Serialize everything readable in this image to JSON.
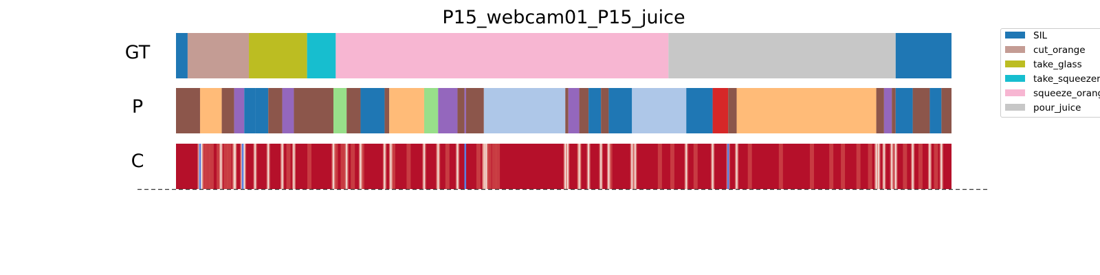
{
  "chart_data": {
    "type": "segmentation-timeline",
    "title": "P15_webcam01_P15_juice",
    "rows": [
      "GT",
      "P",
      "C"
    ],
    "x_range": [
      0,
      1000
    ],
    "legend": [
      "SIL",
      "cut_orange",
      "take_glass",
      "take_squeezer",
      "squeeze_orange",
      "pour_juice"
    ],
    "colors": {
      "SIL": "#1f77b4",
      "cut_orange": "#c49c94",
      "take_glass": "#bcbd22",
      "take_squeezer": "#17becf",
      "squeeze_orange": "#f7b6d2",
      "pour_juice": "#c7c7c7",
      "brown": "#8c564b",
      "peach": "#ffbb78",
      "purple": "#9467bd",
      "light_green": "#98df8a",
      "light_blue": "#aec7e8",
      "red": "#d62728"
    },
    "gt_segments": [
      {
        "start": 0,
        "end": 15,
        "label": "SIL"
      },
      {
        "start": 15,
        "end": 94,
        "label": "cut_orange"
      },
      {
        "start": 94,
        "end": 169,
        "label": "take_glass"
      },
      {
        "start": 169,
        "end": 206,
        "label": "take_squeezer"
      },
      {
        "start": 206,
        "end": 635,
        "label": "squeeze_orange"
      },
      {
        "start": 635,
        "end": 928,
        "label": "pour_juice"
      },
      {
        "start": 928,
        "end": 1000,
        "label": "SIL"
      }
    ],
    "p_segments": [
      {
        "start": 0,
        "end": 31,
        "color": "brown"
      },
      {
        "start": 31,
        "end": 59,
        "color": "peach"
      },
      {
        "start": 59,
        "end": 75,
        "color": "brown"
      },
      {
        "start": 75,
        "end": 88,
        "color": "purple"
      },
      {
        "start": 88,
        "end": 102,
        "color": "SIL"
      },
      {
        "start": 102,
        "end": 119,
        "color": "SIL"
      },
      {
        "start": 119,
        "end": 137,
        "color": "brown"
      },
      {
        "start": 137,
        "end": 152,
        "color": "purple"
      },
      {
        "start": 152,
        "end": 203,
        "color": "brown"
      },
      {
        "start": 203,
        "end": 220,
        "color": "light_green"
      },
      {
        "start": 220,
        "end": 238,
        "color": "brown"
      },
      {
        "start": 238,
        "end": 269,
        "color": "SIL"
      },
      {
        "start": 269,
        "end": 275,
        "color": "brown"
      },
      {
        "start": 275,
        "end": 320,
        "color": "peach"
      },
      {
        "start": 320,
        "end": 338,
        "color": "light_green"
      },
      {
        "start": 338,
        "end": 363,
        "color": "purple"
      },
      {
        "start": 363,
        "end": 372,
        "color": "brown"
      },
      {
        "start": 372,
        "end": 374,
        "color": "purple"
      },
      {
        "start": 374,
        "end": 397,
        "color": "brown"
      },
      {
        "start": 397,
        "end": 502,
        "color": "light_blue"
      },
      {
        "start": 502,
        "end": 506,
        "color": "brown"
      },
      {
        "start": 506,
        "end": 520,
        "color": "purple"
      },
      {
        "start": 520,
        "end": 532,
        "color": "brown"
      },
      {
        "start": 532,
        "end": 548,
        "color": "SIL"
      },
      {
        "start": 548,
        "end": 558,
        "color": "brown"
      },
      {
        "start": 558,
        "end": 588,
        "color": "SIL"
      },
      {
        "start": 588,
        "end": 658,
        "color": "light_blue"
      },
      {
        "start": 658,
        "end": 692,
        "color": "SIL"
      },
      {
        "start": 692,
        "end": 712,
        "color": "red"
      },
      {
        "start": 712,
        "end": 723,
        "color": "brown"
      },
      {
        "start": 723,
        "end": 903,
        "color": "peach"
      },
      {
        "start": 903,
        "end": 913,
        "color": "brown"
      },
      {
        "start": 913,
        "end": 923,
        "color": "purple"
      },
      {
        "start": 923,
        "end": 928,
        "color": "brown"
      },
      {
        "start": 928,
        "end": 950,
        "color": "SIL"
      },
      {
        "start": 950,
        "end": 972,
        "color": "brown"
      },
      {
        "start": 972,
        "end": 987,
        "color": "SIL"
      },
      {
        "start": 987,
        "end": 1000,
        "color": "brown"
      }
    ],
    "confidence": {
      "base_color": "#b5102a",
      "light_dips": [
        30,
        32,
        33,
        58,
        75,
        76,
        85,
        87,
        88,
        102,
        119,
        137,
        152,
        203,
        220,
        238,
        269,
        277,
        320,
        338,
        363,
        397,
        398,
        400,
        502,
        505,
        520,
        532,
        548,
        558,
        588,
        592,
        658,
        692,
        712,
        723,
        903,
        906,
        913,
        923,
        928,
        950,
        972,
        987
      ],
      "blue_dips": [
        31,
        86,
        373,
        712
      ],
      "soft_dips": [
        36,
        41,
        46,
        55,
        64,
        69,
        145,
        172,
        206,
        215,
        228,
        240,
        280,
        300,
        338,
        350,
        390,
        404,
        410,
        415,
        520,
        560,
        624,
        640,
        670,
        740,
        780,
        820,
        845,
        860,
        880,
        895,
        940,
        960,
        980
      ]
    }
  }
}
